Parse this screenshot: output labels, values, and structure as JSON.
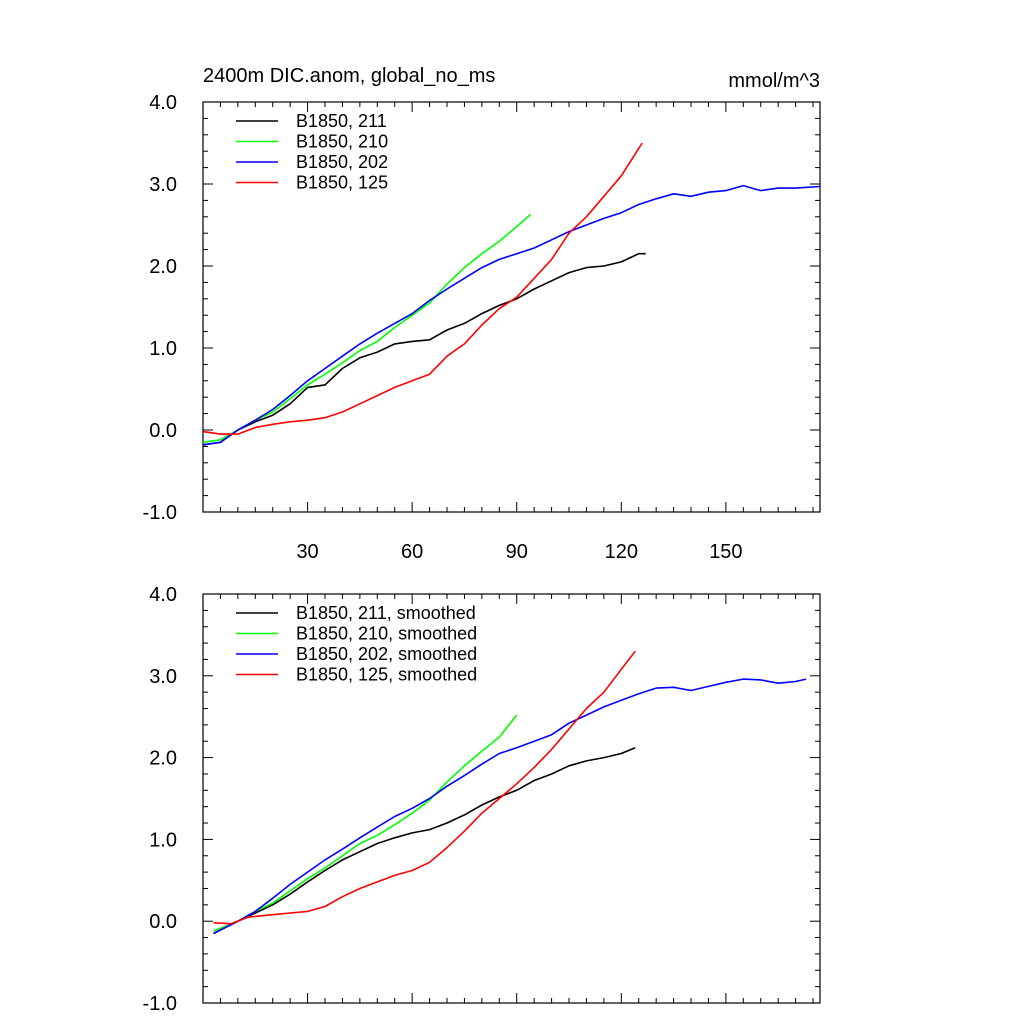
{
  "chart_data": [
    {
      "type": "line",
      "title": "2400m DIC.anom, global_no_ms",
      "units": "mmol/m^3",
      "xlabel": "",
      "ylabel": "",
      "xlim": [
        0,
        177
      ],
      "ylim": [
        -1.0,
        4.0
      ],
      "xticks": [
        "30",
        "60",
        "90",
        "120",
        "150"
      ],
      "yticks": [
        "-1.0",
        "0.0",
        "1.0",
        "2.0",
        "3.0",
        "4.0"
      ],
      "legend_position": "top-left",
      "grid": false,
      "series": [
        {
          "name": "B1850, 211",
          "color": "#000000",
          "x": [
            0,
            5,
            10,
            15,
            20,
            25,
            30,
            35,
            40,
            45,
            50,
            55,
            60,
            65,
            70,
            75,
            80,
            85,
            90,
            95,
            100,
            105,
            110,
            115,
            120,
            125,
            127
          ],
          "y": [
            -0.18,
            -0.15,
            0.0,
            0.1,
            0.18,
            0.32,
            0.52,
            0.55,
            0.75,
            0.88,
            0.95,
            1.05,
            1.08,
            1.1,
            1.22,
            1.3,
            1.42,
            1.52,
            1.6,
            1.72,
            1.82,
            1.92,
            1.98,
            2.0,
            2.05,
            2.15,
            2.15
          ]
        },
        {
          "name": "B1850, 210",
          "color": "#00ff00",
          "x": [
            0,
            5,
            10,
            15,
            20,
            25,
            30,
            35,
            40,
            45,
            50,
            55,
            60,
            65,
            70,
            75,
            80,
            85,
            90,
            94
          ],
          "y": [
            -0.15,
            -0.12,
            0.0,
            0.12,
            0.22,
            0.38,
            0.55,
            0.68,
            0.82,
            0.97,
            1.08,
            1.25,
            1.4,
            1.55,
            1.78,
            1.98,
            2.15,
            2.3,
            2.48,
            2.63
          ]
        },
        {
          "name": "B1850, 202",
          "color": "#0000ff",
          "x": [
            0,
            5,
            10,
            15,
            20,
            25,
            30,
            35,
            40,
            45,
            50,
            55,
            60,
            65,
            70,
            75,
            80,
            85,
            90,
            95,
            100,
            105,
            110,
            115,
            120,
            125,
            130,
            135,
            140,
            145,
            150,
            155,
            160,
            165,
            170,
            177
          ],
          "y": [
            -0.18,
            -0.15,
            0.0,
            0.12,
            0.25,
            0.42,
            0.6,
            0.75,
            0.9,
            1.05,
            1.18,
            1.3,
            1.42,
            1.58,
            1.72,
            1.85,
            1.98,
            2.08,
            2.15,
            2.22,
            2.32,
            2.42,
            2.5,
            2.58,
            2.65,
            2.75,
            2.82,
            2.88,
            2.85,
            2.9,
            2.92,
            2.98,
            2.92,
            2.95,
            2.95,
            2.97
          ]
        },
        {
          "name": "B1850, 125",
          "color": "#ff0000",
          "x": [
            0,
            5,
            10,
            15,
            20,
            25,
            30,
            35,
            40,
            45,
            50,
            55,
            60,
            65,
            70,
            75,
            80,
            85,
            90,
            95,
            100,
            105,
            110,
            115,
            120,
            126
          ],
          "y": [
            -0.02,
            -0.05,
            -0.05,
            0.03,
            0.07,
            0.1,
            0.12,
            0.15,
            0.22,
            0.32,
            0.42,
            0.52,
            0.6,
            0.68,
            0.9,
            1.05,
            1.28,
            1.48,
            1.62,
            1.85,
            2.08,
            2.4,
            2.6,
            2.85,
            3.1,
            3.5
          ]
        }
      ]
    },
    {
      "type": "line",
      "title": "",
      "xlabel": "",
      "ylabel": "",
      "xlim": [
        0,
        177
      ],
      "ylim": [
        -1.0,
        4.0
      ],
      "xticks": [],
      "yticks": [
        "-1.0",
        "0.0",
        "1.0",
        "2.0",
        "3.0",
        "4.0"
      ],
      "legend_position": "top-left",
      "grid": false,
      "series": [
        {
          "name": "B1850, 211, smoothed",
          "color": "#000000",
          "x": [
            3,
            10,
            15,
            20,
            25,
            30,
            35,
            40,
            45,
            50,
            55,
            60,
            65,
            70,
            75,
            80,
            85,
            90,
            95,
            100,
            105,
            110,
            115,
            120,
            124
          ],
          "y": [
            -0.15,
            0.0,
            0.1,
            0.2,
            0.33,
            0.48,
            0.62,
            0.75,
            0.85,
            0.95,
            1.02,
            1.08,
            1.12,
            1.2,
            1.3,
            1.42,
            1.52,
            1.6,
            1.72,
            1.8,
            1.9,
            1.96,
            2.0,
            2.05,
            2.12
          ]
        },
        {
          "name": "B1850, 210, smoothed",
          "color": "#00ff00",
          "x": [
            3,
            10,
            15,
            20,
            25,
            30,
            35,
            40,
            45,
            50,
            55,
            60,
            65,
            70,
            75,
            80,
            85,
            90
          ],
          "y": [
            -0.12,
            0.0,
            0.12,
            0.22,
            0.37,
            0.52,
            0.65,
            0.8,
            0.95,
            1.05,
            1.18,
            1.32,
            1.48,
            1.7,
            1.9,
            2.08,
            2.25,
            2.52
          ]
        },
        {
          "name": "B1850, 202, smoothed",
          "color": "#0000ff",
          "x": [
            3,
            10,
            15,
            20,
            25,
            30,
            35,
            40,
            45,
            50,
            55,
            60,
            65,
            70,
            75,
            80,
            85,
            90,
            95,
            100,
            105,
            110,
            115,
            120,
            125,
            130,
            135,
            140,
            145,
            150,
            155,
            160,
            165,
            170,
            173
          ],
          "y": [
            -0.15,
            0.0,
            0.12,
            0.28,
            0.45,
            0.6,
            0.75,
            0.88,
            1.02,
            1.15,
            1.28,
            1.38,
            1.5,
            1.65,
            1.78,
            1.92,
            2.05,
            2.12,
            2.2,
            2.28,
            2.42,
            2.52,
            2.62,
            2.7,
            2.78,
            2.85,
            2.86,
            2.82,
            2.87,
            2.92,
            2.96,
            2.95,
            2.91,
            2.93,
            2.96
          ]
        },
        {
          "name": "B1850, 125, smoothed",
          "color": "#ff0000",
          "x": [
            3,
            8,
            13,
            20,
            25,
            30,
            35,
            40,
            45,
            50,
            55,
            60,
            65,
            70,
            75,
            80,
            85,
            90,
            95,
            100,
            105,
            110,
            115,
            120,
            124
          ],
          "y": [
            -0.02,
            -0.03,
            0.05,
            0.08,
            0.1,
            0.12,
            0.18,
            0.3,
            0.4,
            0.48,
            0.56,
            0.62,
            0.72,
            0.9,
            1.1,
            1.32,
            1.5,
            1.68,
            1.88,
            2.1,
            2.35,
            2.6,
            2.8,
            3.08,
            3.3
          ]
        }
      ]
    }
  ]
}
